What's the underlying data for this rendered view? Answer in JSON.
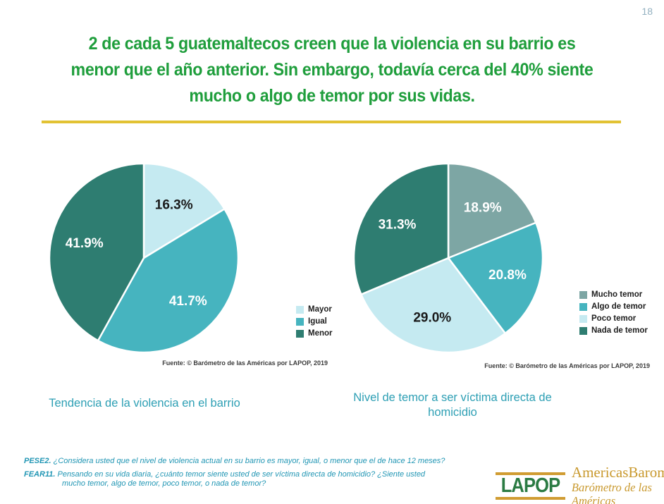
{
  "page": {
    "number": "18"
  },
  "title": {
    "lines": [
      "2 de cada 5 guatemaltecos creen que la violencia en su barrio es",
      "menor que el año anterior. Sin embargo, todavía cerca del 40% siente",
      "mucho o algo de temor por sus vidas."
    ]
  },
  "colors": {
    "title_green": "#1f9e3c",
    "divider_gold": "#e2c233",
    "chart_title_teal": "#2d9fb4",
    "footnote_teal": "#2196b4",
    "logo_green": "#2b7b43",
    "logo_gold": "#c9992e",
    "page_number_gray": "#93b1c0"
  },
  "chart_data": [
    {
      "type": "pie",
      "title": "Tendencia de la violencia en el barrio",
      "slices": [
        {
          "label": "Mayor",
          "value": 16.3,
          "color": "#c5eaf1",
          "label_color": "#1a1a1a"
        },
        {
          "label": "Igual",
          "value": 41.7,
          "color": "#46b4bf",
          "label_color": "#ffffff"
        },
        {
          "label": "Menor",
          "value": 41.9,
          "color": "#2e7d71",
          "label_color": "#ffffff"
        }
      ],
      "value_suffix": "%",
      "start_angle_deg": 0,
      "direction": "clockwise",
      "legend_position": "right",
      "source": "Fuente: © Barómetro de las Américas por LAPOP, 2019"
    },
    {
      "type": "pie",
      "title": "Nivel de temor a ser víctima directa de homicidio",
      "slices": [
        {
          "label": "Mucho temor",
          "value": 18.9,
          "color": "#7da6a4",
          "label_color": "#ffffff"
        },
        {
          "label": "Algo de temor",
          "value": 20.8,
          "color": "#46b4bf",
          "label_color": "#ffffff"
        },
        {
          "label": "Poco temor",
          "value": 29.0,
          "color": "#c5eaf1",
          "label_color": "#1a1a1a"
        },
        {
          "label": "Nada de temor",
          "value": 31.3,
          "color": "#2e7d71",
          "label_color": "#ffffff"
        }
      ],
      "value_suffix": "%",
      "start_angle_deg": 0,
      "direction": "clockwise",
      "legend_position": "right",
      "source": "Fuente: © Barómetro de las Américas por LAPOP, 2019"
    }
  ],
  "footnotes": [
    {
      "label": "PESE2.",
      "text": "¿Considera usted que el nivel de violencia actual en su barrio es mayor, igual, o menor que el de hace 12 meses?"
    },
    {
      "label": "FEAR11.",
      "text": "Pensando en su vida diaria, ¿cuánto temor siente usted de ser víctima directa de homicidio?  ¿Siente usted mucho temor, algo de temor, poco temor, o nada de temor?"
    }
  ],
  "logo": {
    "acronym": "LAPOP",
    "name_en": "AmericasBarometer",
    "name_es": "Barómetro de las Américas"
  }
}
